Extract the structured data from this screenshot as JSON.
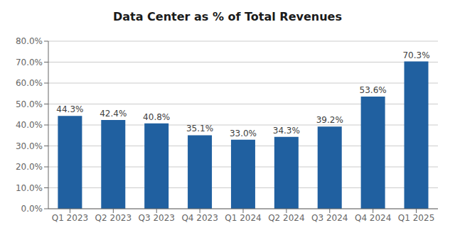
{
  "chart_data": {
    "type": "bar",
    "title": "Data Center as % of Total Revenues",
    "categories": [
      "Q1 2023",
      "Q2 2023",
      "Q3 2023",
      "Q4 2023",
      "Q1 2024",
      "Q2 2024",
      "Q3 2024",
      "Q4 2024",
      "Q1 2025"
    ],
    "values": [
      44.3,
      42.4,
      40.8,
      35.1,
      33.0,
      34.3,
      39.2,
      53.6,
      70.3
    ],
    "value_labels": [
      "44.3%",
      "42.4%",
      "40.8%",
      "35.1%",
      "33.0%",
      "34.3%",
      "39.2%",
      "53.6%",
      "70.3%"
    ],
    "data_labels": true,
    "color": "#2060A0",
    "ylim": [
      0,
      80
    ],
    "yticks": [
      {
        "value": 0,
        "label": "0.0%"
      },
      {
        "value": 10,
        "label": "10.0%"
      },
      {
        "value": 20,
        "label": "20.0%"
      },
      {
        "value": 30,
        "label": "30.0%"
      },
      {
        "value": 40,
        "label": "40.0%"
      },
      {
        "value": 50,
        "label": "50.0%"
      },
      {
        "value": 60,
        "label": "60.0%"
      },
      {
        "value": 70,
        "label": "70.0%"
      },
      {
        "value": 80,
        "label": "80.0%"
      }
    ],
    "grid": true
  }
}
